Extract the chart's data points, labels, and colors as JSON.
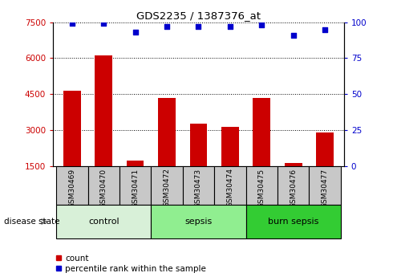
{
  "title": "GDS2235 / 1387376_at",
  "samples": [
    "GSM30469",
    "GSM30470",
    "GSM30471",
    "GSM30472",
    "GSM30473",
    "GSM30474",
    "GSM30475",
    "GSM30476",
    "GSM30477"
  ],
  "counts": [
    4650,
    6100,
    1750,
    4350,
    3280,
    3150,
    4350,
    1620,
    2900
  ],
  "percentile_ranks": [
    99,
    99,
    93,
    97,
    97,
    97,
    98,
    91,
    95
  ],
  "ylim_left": [
    1500,
    7500
  ],
  "ylim_right": [
    0,
    100
  ],
  "yticks_left": [
    1500,
    3000,
    4500,
    6000,
    7500
  ],
  "yticks_right": [
    0,
    25,
    50,
    75,
    100
  ],
  "bar_color": "#CC0000",
  "dot_color": "#0000CC",
  "groups": [
    {
      "label": "control",
      "indices": [
        0,
        1,
        2
      ],
      "color": "#d8f0d8"
    },
    {
      "label": "sepsis",
      "indices": [
        3,
        4,
        5
      ],
      "color": "#90EE90"
    },
    {
      "label": "burn sepsis",
      "indices": [
        6,
        7,
        8
      ],
      "color": "#33CC33"
    }
  ],
  "disease_state_label": "disease state",
  "legend_count_label": "count",
  "legend_pct_label": "percentile rank within the sample",
  "tick_label_color": "#CC0000",
  "right_tick_color": "#0000CC",
  "sample_box_color": "#C8C8C8"
}
